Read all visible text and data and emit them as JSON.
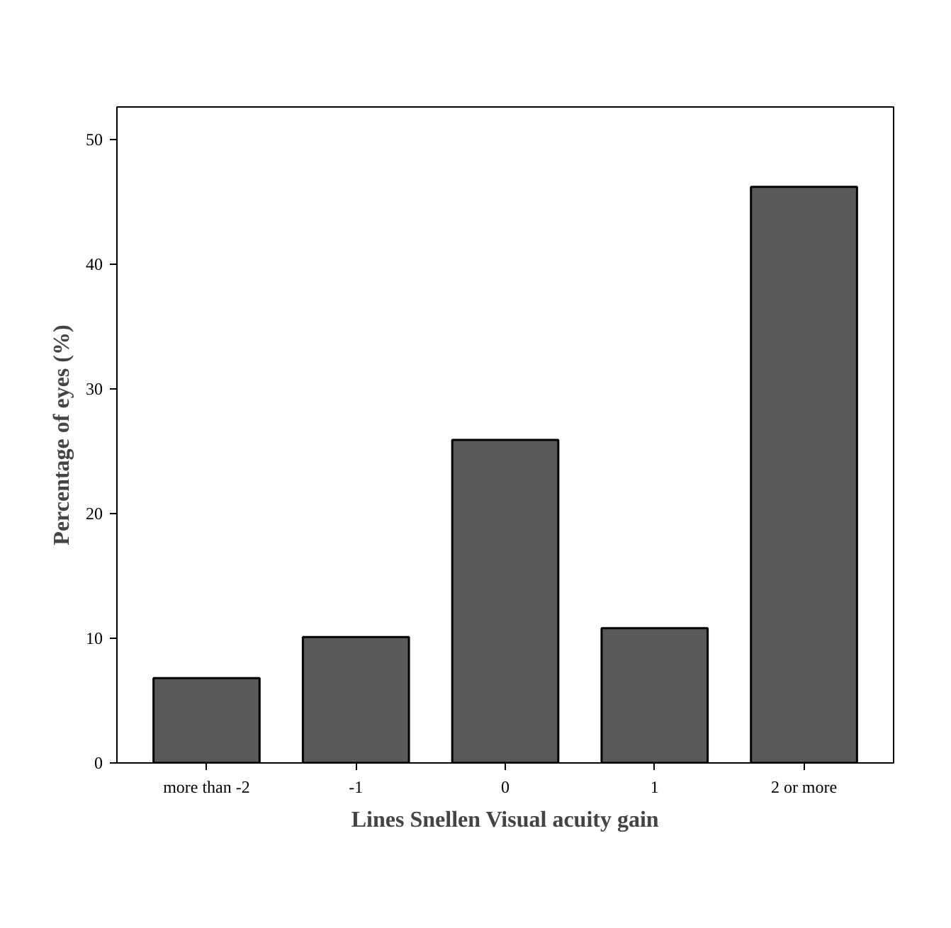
{
  "chart_data": {
    "type": "bar",
    "xlabel": "Lines Snellen Visual acuity gain",
    "ylabel": "Percentage of eyes (%)",
    "categories": [
      "more than -2",
      "-1",
      "0",
      "1",
      "2 or more"
    ],
    "values": [
      6.8,
      10.1,
      25.9,
      10.8,
      46.2
    ],
    "color": "#595959",
    "ylim": [
      0,
      52.6
    ],
    "yticks": [
      0,
      10,
      20,
      30,
      40,
      50
    ],
    "grid": false
  }
}
